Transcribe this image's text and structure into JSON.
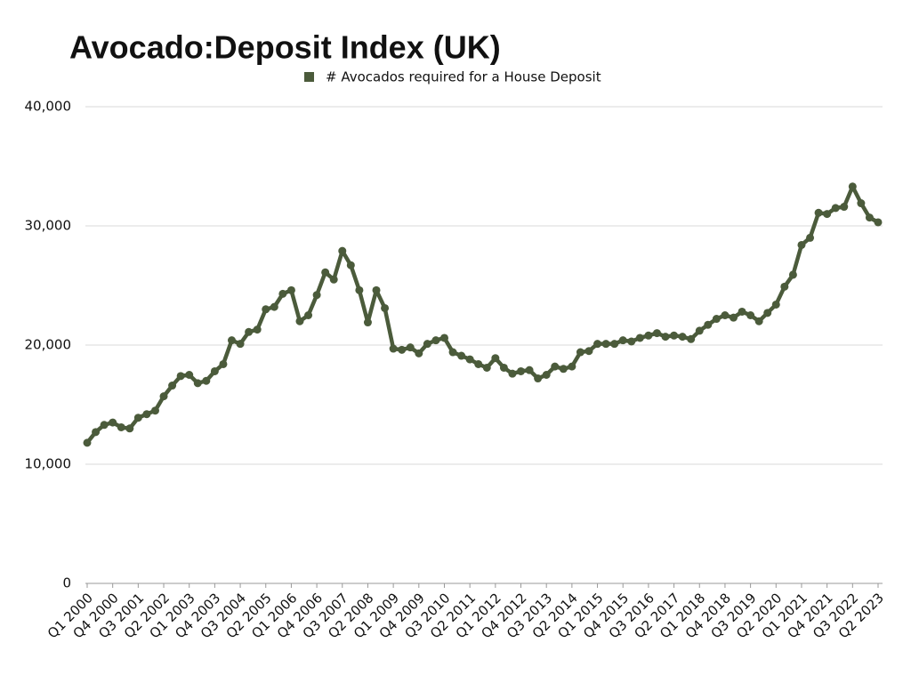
{
  "chart_data": {
    "type": "line",
    "title": "Avocado:Deposit Index (UK)",
    "categories": [
      "Q1 2000",
      null,
      null,
      "Q4 2000",
      null,
      null,
      "Q3 2001",
      null,
      null,
      "Q2 2002",
      null,
      null,
      "Q1 2003",
      null,
      null,
      "Q4 2003",
      null,
      null,
      "Q3 2004",
      null,
      null,
      "Q2 2005",
      null,
      null,
      "Q1 2006",
      null,
      null,
      "Q4 2006",
      null,
      null,
      "Q3 2007",
      null,
      null,
      "Q2 2008",
      null,
      null,
      "Q1 2009",
      null,
      null,
      "Q4 2009",
      null,
      null,
      "Q3 2010",
      null,
      null,
      "Q2 2011",
      null,
      null,
      "Q1 2012",
      null,
      null,
      "Q4 2012",
      null,
      null,
      "Q3 2013",
      null,
      null,
      "Q2 2014",
      null,
      null,
      "Q1 2015",
      null,
      null,
      "Q4 2015",
      null,
      null,
      "Q3 2016",
      null,
      null,
      "Q2 2017",
      null,
      null,
      "Q1 2018",
      null,
      null,
      "Q4 2018",
      null,
      null,
      "Q3 2019",
      null,
      null,
      "Q2 2020",
      null,
      null,
      "Q1 2021",
      null,
      null,
      "Q4 2021",
      null,
      null,
      "Q3 2022",
      null,
      null,
      "Q2 2023"
    ],
    "series": [
      {
        "name": "# Avocados required for a House Deposit",
        "color": "#4b5b3b",
        "values": [
          11800,
          12700,
          13300,
          13500,
          13100,
          13000,
          13900,
          14200,
          14500,
          15700,
          16600,
          17400,
          17500,
          16800,
          17000,
          17800,
          18400,
          20400,
          20100,
          21100,
          21300,
          23000,
          23200,
          24300,
          24600,
          22000,
          22500,
          24200,
          26100,
          25500,
          27900,
          26700,
          24600,
          21900,
          24600,
          23100,
          19700,
          19600,
          19800,
          19300,
          20100,
          20400,
          20600,
          19400,
          19100,
          18800,
          18400,
          18100,
          18900,
          18100,
          17600,
          17800,
          17900,
          17200,
          17500,
          18200,
          18000,
          18200,
          19400,
          19500,
          20100,
          20100,
          20100,
          20400,
          20300,
          20600,
          20800,
          21000,
          20700,
          20800,
          20700,
          20500,
          21200,
          21700,
          22200,
          22500,
          22300,
          22800,
          22500,
          22000,
          22700,
          23400,
          24900,
          25900,
          28400,
          29000,
          31100,
          31000,
          31500,
          31600,
          33300,
          31900,
          30700,
          30300
        ]
      }
    ],
    "ylim": [
      0,
      40000
    ],
    "yticks": [
      0,
      {
        "value": 10000,
        "label": "10,000"
      },
      {
        "value": 20000,
        "label": "20,000"
      },
      {
        "value": 30000,
        "label": "30,000"
      },
      {
        "value": 40000,
        "label": "40,000"
      }
    ],
    "grid": true
  }
}
